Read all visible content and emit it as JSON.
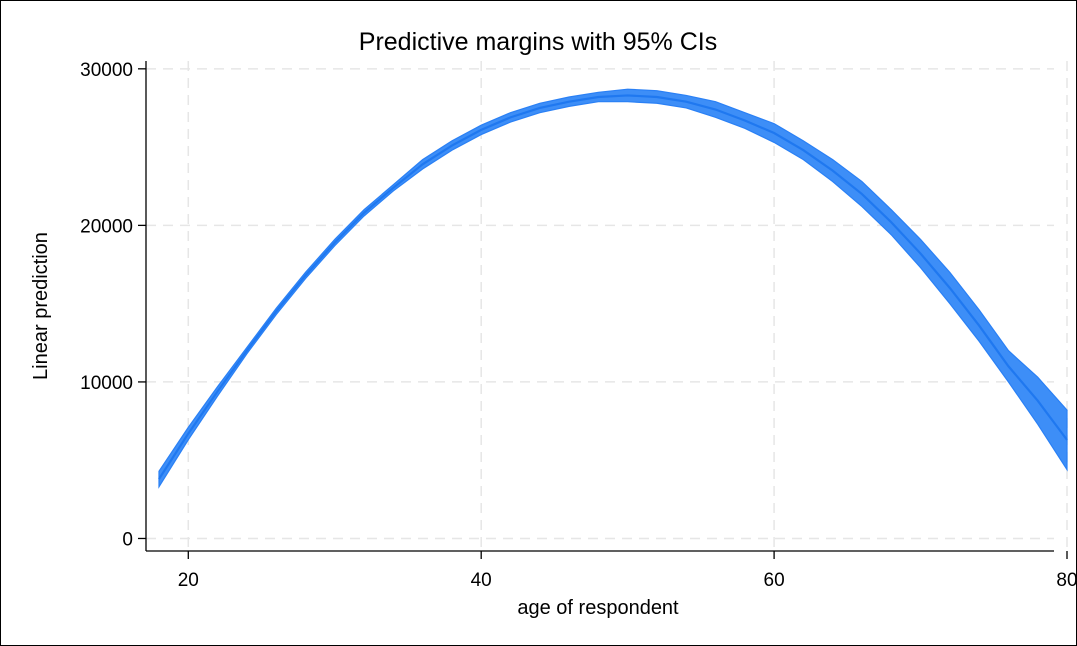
{
  "chart_data": {
    "type": "area",
    "title": "Predictive margins with 95% CIs",
    "xlabel": "age of respondent",
    "ylabel": "Linear prediction",
    "xlim": [
      18,
      80
    ],
    "ylim": [
      -800,
      30500
    ],
    "xticks": [
      20,
      40,
      60,
      80
    ],
    "yticks": [
      0,
      10000,
      20000,
      30000
    ],
    "grid": true,
    "legend": "none",
    "colors": {
      "band": "#3d8ef7",
      "line": "#1f78f0",
      "band_edge": "#2a80f5"
    },
    "series": [
      {
        "x": [
          18,
          20,
          22,
          24,
          26,
          28,
          30,
          32,
          34,
          36,
          38,
          40,
          42,
          44,
          46,
          48,
          50,
          52,
          54,
          56,
          58,
          60,
          62,
          64,
          66,
          68,
          70,
          72,
          74,
          76,
          78,
          80
        ],
        "y": [
          3800,
          6700,
          9400,
          12000,
          14500,
          16800,
          18900,
          20800,
          22400,
          23900,
          25100,
          26100,
          26900,
          27500,
          27900,
          28200,
          28300,
          28200,
          27900,
          27400,
          26700,
          25900,
          24800,
          23500,
          22000,
          20200,
          18200,
          16000,
          13600,
          11000,
          8800,
          6300
        ],
        "lower": [
          3300,
          6300,
          9100,
          11800,
          14300,
          16600,
          18700,
          20600,
          22200,
          23600,
          24800,
          25800,
          26600,
          27200,
          27600,
          27900,
          27900,
          27800,
          27500,
          26900,
          26200,
          25300,
          24200,
          22800,
          21200,
          19400,
          17300,
          15000,
          12600,
          10000,
          7300,
          4400
        ],
        "upper": [
          4300,
          7100,
          9700,
          12200,
          14700,
          17000,
          19100,
          21000,
          22600,
          24200,
          25400,
          26400,
          27200,
          27800,
          28200,
          28500,
          28700,
          28600,
          28300,
          27900,
          27200,
          26500,
          25400,
          24200,
          22800,
          21000,
          19100,
          17000,
          14600,
          12000,
          10300,
          8200
        ]
      }
    ]
  }
}
